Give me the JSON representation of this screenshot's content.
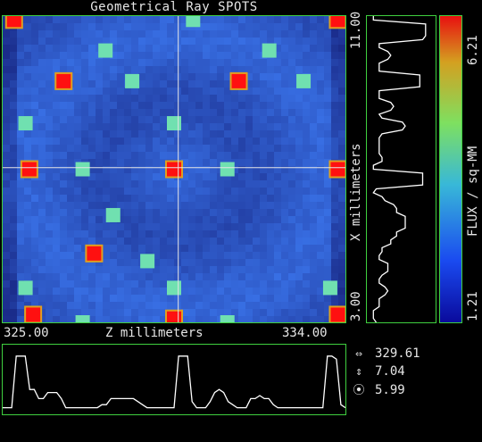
{
  "title": "Geometrical Ray SPOTS",
  "x_axis": {
    "label": "X millimeters",
    "min_label": "3.00",
    "max_label": "11.00"
  },
  "z_axis": {
    "label": "Z millimeters",
    "min_label": "325.00",
    "max_label": "334.00"
  },
  "flux": {
    "label": "FLUX / sq-MM",
    "min_label": "1.21",
    "max_label": "6.21"
  },
  "readouts": [
    {
      "icon": "horizontal-arrows-icon",
      "glyph": "⇔",
      "value": "329.61"
    },
    {
      "icon": "vertical-arrows-icon",
      "glyph": "⇕",
      "value": "7.04"
    },
    {
      "icon": "target-icon",
      "glyph": "⦿",
      "value": "5.99"
    }
  ],
  "colors": {
    "frame": "#3fd03f",
    "background": "#000000",
    "crosshair": "#e6e6e6"
  },
  "crosshair": {
    "z": 329.61,
    "x": 7.04
  },
  "spots": [
    {
      "z": 325.3,
      "x": 10.9,
      "level": 0.95
    },
    {
      "z": 330.0,
      "x": 10.9,
      "level": 0.5
    },
    {
      "z": 333.8,
      "x": 10.9,
      "level": 0.95
    },
    {
      "z": 327.7,
      "x": 10.1,
      "level": 0.55
    },
    {
      "z": 332.0,
      "x": 10.1,
      "level": 0.5
    },
    {
      "z": 326.6,
      "x": 9.3,
      "level": 0.95
    },
    {
      "z": 328.4,
      "x": 9.3,
      "level": 0.5
    },
    {
      "z": 331.2,
      "x": 9.3,
      "level": 0.95
    },
    {
      "z": 332.9,
      "x": 9.3,
      "level": 0.5
    },
    {
      "z": 325.6,
      "x": 8.2,
      "level": 0.5
    },
    {
      "z": 329.5,
      "x": 8.2,
      "level": 0.55
    },
    {
      "z": 325.7,
      "x": 7.0,
      "level": 0.95
    },
    {
      "z": 327.1,
      "x": 7.0,
      "level": 0.5
    },
    {
      "z": 329.5,
      "x": 7.0,
      "level": 0.95
    },
    {
      "z": 330.9,
      "x": 7.0,
      "level": 0.5
    },
    {
      "z": 333.8,
      "x": 7.0,
      "level": 0.95
    },
    {
      "z": 327.9,
      "x": 5.8,
      "level": 0.5
    },
    {
      "z": 327.4,
      "x": 4.8,
      "level": 0.95
    },
    {
      "z": 328.8,
      "x": 4.6,
      "level": 0.5
    },
    {
      "z": 325.6,
      "x": 3.9,
      "level": 0.5
    },
    {
      "z": 329.5,
      "x": 3.9,
      "level": 0.5
    },
    {
      "z": 333.6,
      "x": 3.9,
      "level": 0.5
    },
    {
      "z": 325.8,
      "x": 3.2,
      "level": 0.95
    },
    {
      "z": 327.1,
      "x": 3.0,
      "level": 0.5
    },
    {
      "z": 329.5,
      "x": 3.1,
      "level": 0.95
    },
    {
      "z": 330.9,
      "x": 3.0,
      "level": 0.5
    },
    {
      "z": 333.8,
      "x": 3.2,
      "level": 0.95
    }
  ],
  "profile_x": [
    0.05,
    0.05,
    0.95,
    0.95,
    0.95,
    0.95,
    0.9,
    0.15,
    0.15,
    0.3,
    0.35,
    0.3,
    0.15,
    0.15,
    0.15,
    0.85,
    0.85,
    0.85,
    0.85,
    0.15,
    0.15,
    0.15,
    0.35,
    0.4,
    0.35,
    0.15,
    0.2,
    0.55,
    0.6,
    0.55,
    0.2,
    0.15,
    0.15,
    0.15,
    0.15,
    0.15,
    0.2,
    0.2,
    0.05,
    0.05,
    0.9,
    0.9,
    0.9,
    0.9,
    0.1,
    0.05,
    0.2,
    0.25,
    0.4,
    0.45,
    0.45,
    0.6,
    0.6,
    0.6,
    0.6,
    0.45,
    0.45,
    0.35,
    0.35,
    0.2,
    0.2,
    0.15,
    0.15,
    0.3,
    0.3,
    0.3,
    0.2,
    0.15,
    0.15,
    0.25,
    0.3,
    0.25,
    0.15,
    0.15,
    0.15,
    0.05,
    0.05,
    0.05,
    0.1
  ],
  "profile_z": [
    0.05,
    0.05,
    0.05,
    0.9,
    0.9,
    0.9,
    0.35,
    0.35,
    0.2,
    0.2,
    0.3,
    0.3,
    0.3,
    0.2,
    0.05,
    0.05,
    0.05,
    0.05,
    0.05,
    0.05,
    0.05,
    0.05,
    0.1,
    0.1,
    0.2,
    0.2,
    0.2,
    0.2,
    0.2,
    0.2,
    0.15,
    0.1,
    0.05,
    0.05,
    0.05,
    0.05,
    0.05,
    0.05,
    0.05,
    0.9,
    0.9,
    0.9,
    0.15,
    0.05,
    0.05,
    0.05,
    0.15,
    0.3,
    0.35,
    0.3,
    0.15,
    0.1,
    0.05,
    0.05,
    0.05,
    0.2,
    0.2,
    0.25,
    0.2,
    0.2,
    0.1,
    0.05,
    0.05,
    0.05,
    0.05,
    0.05,
    0.05,
    0.05,
    0.05,
    0.05,
    0.05,
    0.05,
    0.9,
    0.9,
    0.85,
    0.1,
    0.05
  ]
}
